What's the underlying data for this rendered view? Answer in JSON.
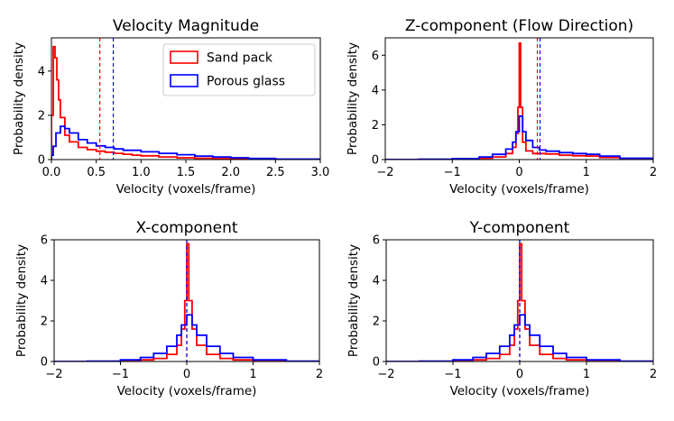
{
  "chart_data": [
    {
      "type": "step",
      "title": "Velocity Magnitude",
      "xlabel": "Velocity (voxels/frame)",
      "ylabel": "Probability density",
      "xlim": [
        0,
        3.0
      ],
      "ylim": [
        0,
        5.5
      ],
      "xticks": [
        0.0,
        0.5,
        1.0,
        1.5,
        2.0,
        2.5,
        3.0
      ],
      "xtick_labels": [
        "0.0",
        "0.5",
        "1.0",
        "1.5",
        "2.0",
        "2.5",
        "3.0"
      ],
      "yticks": [
        0,
        2,
        4
      ],
      "ytick_labels": [
        "0",
        "2",
        "4"
      ],
      "legend": {
        "position": "top-right",
        "entries": [
          "Sand pack",
          "Porous glass"
        ]
      },
      "series": [
        {
          "name": "Sand pack",
          "color": "#ff0000",
          "x": [
            0,
            0.02,
            0.04,
            0.06,
            0.08,
            0.1,
            0.15,
            0.2,
            0.3,
            0.4,
            0.5,
            0.6,
            0.7,
            0.8,
            0.9,
            1.0,
            1.2,
            1.4,
            1.6,
            1.8,
            2.0,
            2.2,
            2.5,
            3.0
          ],
          "y": [
            2.0,
            5.1,
            4.6,
            3.6,
            2.7,
            1.9,
            1.1,
            0.8,
            0.55,
            0.45,
            0.38,
            0.33,
            0.28,
            0.24,
            0.2,
            0.17,
            0.12,
            0.08,
            0.06,
            0.04,
            0.03,
            0.02,
            0.01,
            0.0
          ]
        },
        {
          "name": "Porous glass",
          "color": "#0000ff",
          "x": [
            0,
            0.02,
            0.05,
            0.1,
            0.15,
            0.2,
            0.3,
            0.4,
            0.5,
            0.6,
            0.7,
            0.8,
            1.0,
            1.2,
            1.4,
            1.6,
            1.8,
            2.0,
            2.2,
            2.5,
            3.0
          ],
          "y": [
            0.2,
            0.6,
            1.2,
            1.5,
            1.4,
            1.2,
            0.9,
            0.75,
            0.62,
            0.55,
            0.48,
            0.42,
            0.35,
            0.28,
            0.22,
            0.16,
            0.12,
            0.08,
            0.05,
            0.02,
            0.0
          ]
        }
      ],
      "vlines": [
        {
          "x": 0.54,
          "color": "#ff0000"
        },
        {
          "x": 0.69,
          "color": "#0000ff"
        }
      ]
    },
    {
      "type": "step",
      "title": "Z-component (Flow Direction)",
      "xlabel": "Velocity (voxels/frame)",
      "ylabel": "Probability density",
      "xlim": [
        -2,
        2
      ],
      "ylim": [
        0,
        7
      ],
      "xticks": [
        -2,
        -1,
        0,
        1,
        2
      ],
      "xtick_labels": [
        "−2",
        "−1",
        "0",
        "1",
        "2"
      ],
      "yticks": [
        0,
        2,
        4,
        6
      ],
      "ytick_labels": [
        "0",
        "2",
        "4",
        "6"
      ],
      "series": [
        {
          "name": "Sand pack",
          "color": "#ff0000",
          "x": [
            -2,
            -1.5,
            -1.0,
            -0.6,
            -0.4,
            -0.2,
            -0.1,
            -0.05,
            -0.02,
            0,
            0.02,
            0.05,
            0.1,
            0.2,
            0.3,
            0.4,
            0.6,
            0.8,
            1.0,
            1.2,
            1.5,
            2.0
          ],
          "y": [
            0,
            0.01,
            0.03,
            0.08,
            0.15,
            0.35,
            0.7,
            1.5,
            3.0,
            6.7,
            3.0,
            1.0,
            0.5,
            0.35,
            0.35,
            0.32,
            0.25,
            0.22,
            0.2,
            0.12,
            0.05,
            0.01
          ]
        },
        {
          "name": "Porous glass",
          "color": "#0000ff",
          "x": [
            -2,
            -1.5,
            -1.0,
            -0.6,
            -0.4,
            -0.2,
            -0.1,
            -0.05,
            0,
            0.05,
            0.1,
            0.2,
            0.3,
            0.4,
            0.6,
            0.8,
            1.0,
            1.2,
            1.5,
            2.0
          ],
          "y": [
            0,
            0.02,
            0.05,
            0.15,
            0.3,
            0.6,
            1.0,
            1.6,
            2.5,
            1.6,
            1.1,
            0.7,
            0.55,
            0.48,
            0.4,
            0.35,
            0.3,
            0.2,
            0.08,
            0.02
          ]
        }
      ],
      "vlines": [
        {
          "x": 0.27,
          "color": "#ff0000"
        },
        {
          "x": 0.31,
          "color": "#0000ff"
        }
      ]
    },
    {
      "type": "step",
      "title": "X-component",
      "xlabel": "Velocity (voxels/frame)",
      "ylabel": "Probability density",
      "xlim": [
        -2,
        2
      ],
      "ylim": [
        0,
        6
      ],
      "xticks": [
        -2,
        -1,
        0,
        1,
        2
      ],
      "xtick_labels": [
        "−2",
        "−1",
        "0",
        "1",
        "2"
      ],
      "yticks": [
        0,
        2,
        4,
        6
      ],
      "ytick_labels": [
        "0",
        "2",
        "4",
        "6"
      ],
      "series": [
        {
          "name": "Sand pack",
          "color": "#ff0000",
          "x": [
            -2,
            -1.5,
            -1.0,
            -0.7,
            -0.5,
            -0.3,
            -0.15,
            -0.08,
            -0.03,
            0,
            0.03,
            0.08,
            0.15,
            0.3,
            0.5,
            0.7,
            1.0,
            1.5,
            2.0
          ],
          "y": [
            0,
            0.01,
            0.03,
            0.08,
            0.15,
            0.35,
            0.8,
            1.6,
            3.0,
            5.8,
            3.0,
            1.6,
            0.8,
            0.35,
            0.15,
            0.08,
            0.03,
            0.01,
            0
          ]
        },
        {
          "name": "Porous glass",
          "color": "#0000ff",
          "x": [
            -2,
            -1.5,
            -1.0,
            -0.7,
            -0.5,
            -0.3,
            -0.15,
            -0.08,
            0,
            0.08,
            0.15,
            0.3,
            0.5,
            0.7,
            1.0,
            1.5,
            2.0
          ],
          "y": [
            0,
            0.02,
            0.08,
            0.2,
            0.4,
            0.75,
            1.3,
            1.8,
            2.3,
            1.8,
            1.3,
            0.75,
            0.4,
            0.2,
            0.08,
            0.02,
            0
          ]
        }
      ],
      "vlines": [
        {
          "x": 0.0,
          "color": "#ff0000"
        },
        {
          "x": 0.0,
          "color": "#0000ff"
        }
      ]
    },
    {
      "type": "step",
      "title": "Y-component",
      "xlabel": "Velocity (voxels/frame)",
      "ylabel": "Probability density",
      "xlim": [
        -2,
        2
      ],
      "ylim": [
        0,
        6
      ],
      "xticks": [
        -2,
        -1,
        0,
        1,
        2
      ],
      "xtick_labels": [
        "−2",
        "−1",
        "0",
        "1",
        "2"
      ],
      "yticks": [
        0,
        2,
        4,
        6
      ],
      "ytick_labels": [
        "0",
        "2",
        "4",
        "6"
      ],
      "series": [
        {
          "name": "Sand pack",
          "color": "#ff0000",
          "x": [
            -2,
            -1.5,
            -1.0,
            -0.7,
            -0.5,
            -0.3,
            -0.15,
            -0.08,
            -0.03,
            0,
            0.03,
            0.08,
            0.15,
            0.3,
            0.5,
            0.7,
            1.0,
            1.5,
            2.0
          ],
          "y": [
            0,
            0.01,
            0.03,
            0.08,
            0.15,
            0.35,
            0.8,
            1.6,
            3.0,
            5.8,
            3.0,
            1.6,
            0.8,
            0.35,
            0.15,
            0.08,
            0.03,
            0.01,
            0
          ]
        },
        {
          "name": "Porous glass",
          "color": "#0000ff",
          "x": [
            -2,
            -1.5,
            -1.0,
            -0.7,
            -0.5,
            -0.3,
            -0.15,
            -0.08,
            0,
            0.08,
            0.15,
            0.3,
            0.5,
            0.7,
            1.0,
            1.5,
            2.0
          ],
          "y": [
            0,
            0.02,
            0.08,
            0.2,
            0.4,
            0.75,
            1.3,
            1.8,
            2.3,
            1.8,
            1.3,
            0.75,
            0.4,
            0.2,
            0.08,
            0.02,
            0
          ]
        }
      ],
      "vlines": [
        {
          "x": 0.0,
          "color": "#ff0000"
        },
        {
          "x": 0.0,
          "color": "#0000ff"
        }
      ]
    }
  ]
}
